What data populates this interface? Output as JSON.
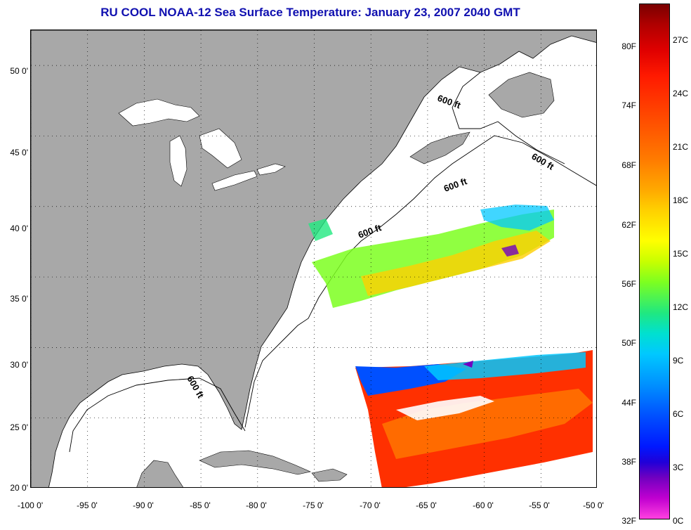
{
  "title": "RU COOL  NOAA-12  Sea Surface Temperature:  January 23, 2007 2040 GMT",
  "map": {
    "lon_range": [
      -100,
      -50
    ],
    "lat_range": [
      20,
      52.5
    ],
    "lat_ticks": [
      {
        "value": 50,
        "label": "50 0'"
      },
      {
        "value": 45,
        "label": "45 0'"
      },
      {
        "value": 40,
        "label": "40 0'"
      },
      {
        "value": 35,
        "label": "35 0'"
      },
      {
        "value": 30,
        "label": "30 0'"
      },
      {
        "value": 25,
        "label": "25 0'"
      },
      {
        "value": 20,
        "label": "20 0'"
      }
    ],
    "lon_ticks": [
      {
        "value": -100,
        "label": "-100 0'"
      },
      {
        "value": -95,
        "label": "-95 0'"
      },
      {
        "value": -90,
        "label": "-90 0'"
      },
      {
        "value": -85,
        "label": "-85 0'"
      },
      {
        "value": -80,
        "label": "-80 0'"
      },
      {
        "value": -75,
        "label": "-75 0'"
      },
      {
        "value": -70,
        "label": "-70 0'"
      },
      {
        "value": -65,
        "label": "-65 0'"
      },
      {
        "value": -60,
        "label": "-60 0'"
      },
      {
        "value": -55,
        "label": "-55 0'"
      },
      {
        "value": -50,
        "label": "-50 0'"
      }
    ],
    "contour_labels": [
      "600 ft",
      "600 ft",
      "600 ft",
      "600 ft",
      "600 ft"
    ],
    "colors": {
      "land": "#a8a8a8",
      "ocean_no_data": "#ffffff",
      "title": "#1010b0"
    }
  },
  "colorbar": {
    "fahrenheit_labels": [
      "80F",
      "74F",
      "68F",
      "62F",
      "56F",
      "50F",
      "44F",
      "38F",
      "32F"
    ],
    "celsius_labels": [
      "27C",
      "24C",
      "21C",
      "18C",
      "15C",
      "12C",
      "9C",
      "6C",
      "3C",
      "0C"
    ],
    "fahrenheit_range": [
      32,
      84
    ],
    "celsius_range": [
      0,
      29
    ]
  }
}
